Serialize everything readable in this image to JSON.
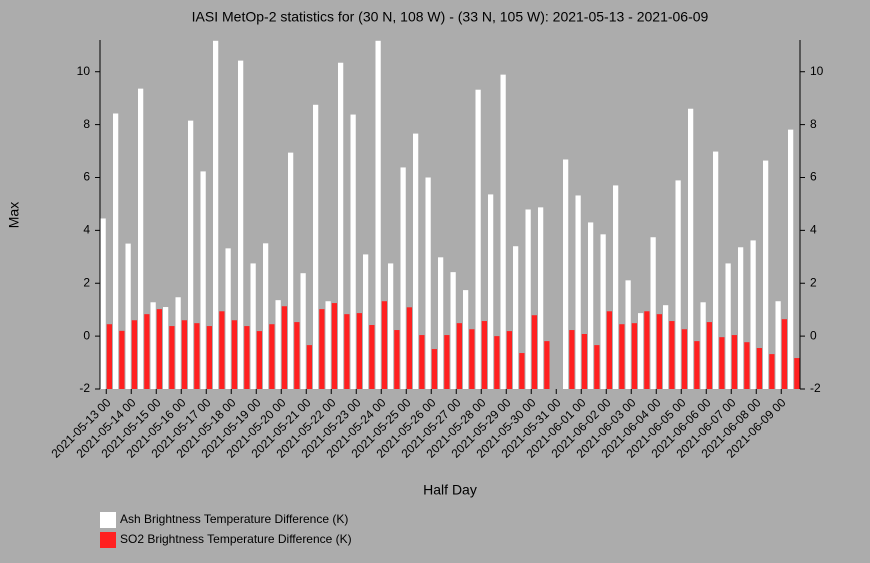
{
  "chart_data": {
    "type": "bar",
    "title": "IASI MetOp-2 statistics for (30 N, 108 W) - (33 N, 105 W): 2021-05-13 - 2021-06-09",
    "x_label": "Half Day",
    "y_label": "Max",
    "categories": [
      "2021-05-13 00",
      null,
      "2021-05-14 00",
      null,
      "2021-05-15 00",
      null,
      "2021-05-16 00",
      null,
      "2021-05-17 00",
      null,
      "2021-05-18 00",
      null,
      "2021-05-19 00",
      null,
      "2021-05-20 00",
      null,
      "2021-05-21 00",
      null,
      "2021-05-22 00",
      null,
      "2021-05-23 00",
      null,
      "2021-05-24 00",
      null,
      "2021-05-25 00",
      null,
      "2021-05-26 00",
      null,
      "2021-05-27 00",
      null,
      "2021-05-28 00",
      null,
      "2021-05-29 00",
      null,
      "2021-05-30 00",
      null,
      "2021-05-31 00",
      null,
      "2021-06-01 00",
      null,
      "2021-06-02 00",
      null,
      "2021-06-03 00",
      null,
      "2021-06-04 00",
      null,
      "2021-06-05 00",
      null,
      "2021-06-06 00",
      null,
      "2021-06-07 00",
      null,
      "2021-06-08 00",
      null,
      "2021-06-09 00",
      null
    ],
    "series": [
      {
        "name": "Ash Brightness Temperature Difference (K)",
        "color": "#ffffff",
        "values": [
          4.45,
          8.42,
          3.5,
          9.36,
          1.28,
          1.1,
          1.47,
          8.15,
          6.23,
          11.17,
          3.32,
          10.42,
          2.75,
          3.51,
          1.36,
          6.94,
          2.38,
          8.75,
          1.32,
          10.34,
          8.38,
          3.09,
          11.17,
          2.75,
          6.38,
          7.66,
          6.0,
          2.98,
          2.42,
          1.74,
          9.32,
          5.36,
          9.89,
          3.4,
          4.79,
          4.87,
          null,
          6.68,
          5.32,
          4.3,
          3.85,
          5.7,
          2.11,
          0.87,
          3.74,
          1.17,
          5.89,
          8.6,
          1.28,
          6.98,
          2.75,
          3.36,
          3.62,
          6.64,
          1.32,
          7.81
        ]
      },
      {
        "name": "SO2 Brightness Temperature Difference (K)",
        "color": "#ff2020",
        "values": [
          0.45,
          0.2,
          0.6,
          0.83,
          1.02,
          0.38,
          0.6,
          0.49,
          0.38,
          0.94,
          0.6,
          0.38,
          0.19,
          0.45,
          1.13,
          0.53,
          -0.34,
          1.02,
          1.25,
          0.83,
          0.87,
          0.42,
          1.32,
          0.23,
          1.09,
          0.04,
          -0.49,
          0.04,
          0.49,
          0.26,
          0.57,
          0,
          0.19,
          -0.64,
          0.79,
          -0.19,
          null,
          0.23,
          0.08,
          -0.34,
          0.94,
          0.45,
          0.49,
          0.94,
          0.83,
          0.57,
          0.26,
          -0.19,
          0.53,
          -0.04,
          0.04,
          -0.23,
          -0.45,
          -0.68,
          0.64,
          -0.83
        ]
      }
    ],
    "ylim": [
      -2,
      11.2
    ],
    "yticks": [
      -2,
      0,
      2,
      4,
      6,
      8,
      10
    ],
    "right_axis": true,
    "legend": "bottom-left"
  }
}
